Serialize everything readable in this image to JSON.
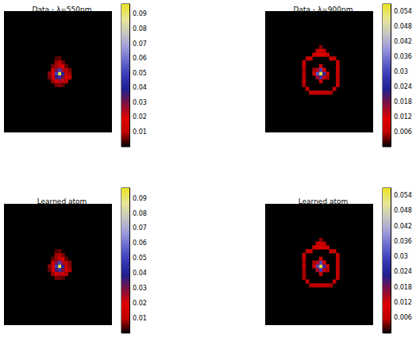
{
  "chart_data": [
    {
      "type": "heatmap",
      "title": "Data - λ=550nm",
      "xlim": [
        0,
        32
      ],
      "ylim": [
        0,
        32
      ],
      "tick_labels": false,
      "cells": [
        [
          16,
          16,
          0.095
        ],
        [
          16,
          15,
          0.05
        ],
        [
          16,
          17,
          0.045
        ],
        [
          15,
          16,
          0.05
        ],
        [
          17,
          16,
          0.04
        ],
        [
          15,
          15,
          0.03
        ],
        [
          15,
          17,
          0.035
        ],
        [
          17,
          15,
          0.025
        ],
        [
          17,
          17,
          0.03
        ],
        [
          14,
          16,
          0.02
        ],
        [
          14,
          15,
          0.015
        ],
        [
          14,
          17,
          0.018
        ],
        [
          16,
          18,
          0.025
        ],
        [
          15,
          18,
          0.02
        ],
        [
          17,
          18,
          0.022
        ],
        [
          18,
          17,
          0.015
        ],
        [
          18,
          16,
          0.012
        ],
        [
          18,
          15,
          0.01
        ],
        [
          16,
          14,
          0.012
        ],
        [
          17,
          14,
          0.018
        ],
        [
          15,
          14,
          0.008
        ],
        [
          16,
          13,
          0.012
        ],
        [
          15,
          13,
          0.008
        ],
        [
          17,
          13,
          0.006
        ],
        [
          16,
          12,
          0.005
        ],
        [
          15,
          12,
          0.004
        ],
        [
          19,
          16,
          0.008
        ],
        [
          19,
          17,
          0.01
        ],
        [
          19,
          15,
          0.006
        ],
        [
          13,
          16,
          0.007
        ],
        [
          13,
          17,
          0.006
        ],
        [
          14,
          18,
          0.008
        ],
        [
          15,
          19,
          0.006
        ],
        [
          16,
          19,
          0.007
        ],
        [
          17,
          19,
          0.005
        ],
        [
          18,
          18,
          0.01
        ],
        [
          14,
          14,
          0.006
        ],
        [
          18,
          14,
          0.005
        ]
      ],
      "colorbar_range": [
        0,
        0.097
      ],
      "colorbar_ticks": [
        0.01,
        0.02,
        0.03,
        0.04,
        0.05,
        0.06,
        0.07,
        0.08,
        0.09
      ]
    },
    {
      "type": "heatmap",
      "title": "Data - λ=900nm",
      "xlim": [
        0,
        32
      ],
      "ylim": [
        0,
        32
      ],
      "tick_labels": false,
      "cells": [
        [
          16,
          16,
          0.056
        ],
        [
          16,
          15,
          0.03
        ],
        [
          16,
          17,
          0.028
        ],
        [
          15,
          16,
          0.032
        ],
        [
          17,
          16,
          0.026
        ],
        [
          15,
          15,
          0.014
        ],
        [
          17,
          15,
          0.012
        ],
        [
          15,
          17,
          0.016
        ],
        [
          17,
          17,
          0.013
        ],
        [
          16,
          14,
          0.008
        ],
        [
          16,
          18,
          0.007
        ],
        [
          14,
          16,
          0.007
        ],
        [
          18,
          16,
          0.006
        ],
        [
          14,
          15,
          0.005
        ],
        [
          18,
          17,
          0.005
        ],
        [
          14,
          11,
          0.008
        ],
        [
          15,
          11,
          0.01
        ],
        [
          16,
          11,
          0.012
        ],
        [
          17,
          11,
          0.01
        ],
        [
          18,
          11,
          0.008
        ],
        [
          15,
          10,
          0.006
        ],
        [
          16,
          10,
          0.009
        ],
        [
          17,
          10,
          0.006
        ],
        [
          16,
          9,
          0.004
        ],
        [
          12,
          12,
          0.006
        ],
        [
          13,
          12,
          0.007
        ],
        [
          19,
          12,
          0.007
        ],
        [
          20,
          12,
          0.006
        ],
        [
          11,
          13,
          0.006
        ],
        [
          21,
          13,
          0.006
        ],
        [
          11,
          14,
          0.006
        ],
        [
          21,
          14,
          0.007
        ],
        [
          11,
          15,
          0.005
        ],
        [
          21,
          15,
          0.007
        ],
        [
          11,
          16,
          0.006
        ],
        [
          21,
          16,
          0.007
        ],
        [
          11,
          17,
          0.005
        ],
        [
          21,
          17,
          0.006
        ],
        [
          11,
          18,
          0.006
        ],
        [
          21,
          18,
          0.006
        ],
        [
          11,
          19,
          0.005
        ],
        [
          21,
          19,
          0.006
        ],
        [
          12,
          20,
          0.006
        ],
        [
          20,
          20,
          0.006
        ],
        [
          13,
          21,
          0.006
        ],
        [
          14,
          21,
          0.006
        ],
        [
          15,
          21,
          0.007
        ],
        [
          16,
          21,
          0.007
        ],
        [
          17,
          21,
          0.006
        ],
        [
          18,
          21,
          0.006
        ],
        [
          19,
          21,
          0.005
        ]
      ],
      "colorbar_range": [
        0,
        0.057
      ],
      "colorbar_ticks": [
        0.006,
        0.012,
        0.018,
        0.024,
        0.03,
        0.036,
        0.042,
        0.048,
        0.054
      ]
    },
    {
      "type": "heatmap",
      "title": "Learned atom",
      "xlim": [
        0,
        32
      ],
      "ylim": [
        0,
        32
      ],
      "tick_labels": false,
      "cells": [
        [
          16,
          16,
          0.095
        ],
        [
          16,
          15,
          0.05
        ],
        [
          16,
          17,
          0.046
        ],
        [
          15,
          16,
          0.049
        ],
        [
          17,
          16,
          0.04
        ],
        [
          15,
          15,
          0.03
        ],
        [
          15,
          17,
          0.034
        ],
        [
          17,
          15,
          0.025
        ],
        [
          17,
          17,
          0.03
        ],
        [
          14,
          16,
          0.02
        ],
        [
          14,
          15,
          0.014
        ],
        [
          14,
          17,
          0.017
        ],
        [
          16,
          18,
          0.024
        ],
        [
          15,
          18,
          0.02
        ],
        [
          17,
          18,
          0.021
        ],
        [
          18,
          17,
          0.014
        ],
        [
          18,
          16,
          0.012
        ],
        [
          18,
          15,
          0.01
        ],
        [
          16,
          14,
          0.012
        ],
        [
          17,
          14,
          0.017
        ],
        [
          15,
          14,
          0.008
        ],
        [
          16,
          13,
          0.011
        ],
        [
          15,
          13,
          0.008
        ],
        [
          17,
          13,
          0.006
        ],
        [
          16,
          12,
          0.005
        ],
        [
          15,
          12,
          0.004
        ],
        [
          19,
          16,
          0.007
        ],
        [
          19,
          17,
          0.009
        ],
        [
          19,
          15,
          0.006
        ],
        [
          13,
          16,
          0.007
        ],
        [
          13,
          17,
          0.005
        ],
        [
          14,
          18,
          0.008
        ],
        [
          15,
          19,
          0.006
        ],
        [
          16,
          19,
          0.006
        ],
        [
          17,
          19,
          0.005
        ],
        [
          18,
          18,
          0.009
        ],
        [
          14,
          14,
          0.005
        ],
        [
          18,
          14,
          0.005
        ]
      ],
      "colorbar_range": [
        0,
        0.097
      ],
      "colorbar_ticks": [
        0.01,
        0.02,
        0.03,
        0.04,
        0.05,
        0.06,
        0.07,
        0.08,
        0.09
      ]
    },
    {
      "type": "heatmap",
      "title": "Learned atom",
      "xlim": [
        0,
        32
      ],
      "ylim": [
        0,
        32
      ],
      "tick_labels": false,
      "cells": [
        [
          16,
          16,
          0.056
        ],
        [
          16,
          15,
          0.03
        ],
        [
          16,
          17,
          0.029
        ],
        [
          15,
          16,
          0.031
        ],
        [
          17,
          16,
          0.026
        ],
        [
          15,
          15,
          0.014
        ],
        [
          17,
          15,
          0.012
        ],
        [
          15,
          17,
          0.015
        ],
        [
          17,
          17,
          0.013
        ],
        [
          16,
          14,
          0.008
        ],
        [
          16,
          18,
          0.007
        ],
        [
          14,
          16,
          0.007
        ],
        [
          18,
          16,
          0.006
        ],
        [
          14,
          15,
          0.005
        ],
        [
          18,
          17,
          0.005
        ],
        [
          14,
          11,
          0.008
        ],
        [
          15,
          11,
          0.01
        ],
        [
          16,
          11,
          0.011
        ],
        [
          17,
          11,
          0.01
        ],
        [
          18,
          11,
          0.008
        ],
        [
          15,
          10,
          0.006
        ],
        [
          16,
          10,
          0.008
        ],
        [
          17,
          10,
          0.006
        ],
        [
          16,
          9,
          0.004
        ],
        [
          12,
          12,
          0.006
        ],
        [
          13,
          12,
          0.007
        ],
        [
          19,
          12,
          0.007
        ],
        [
          20,
          12,
          0.006
        ],
        [
          11,
          13,
          0.006
        ],
        [
          21,
          13,
          0.006
        ],
        [
          11,
          14,
          0.006
        ],
        [
          21,
          14,
          0.006
        ],
        [
          11,
          15,
          0.005
        ],
        [
          21,
          15,
          0.007
        ],
        [
          11,
          16,
          0.006
        ],
        [
          21,
          16,
          0.007
        ],
        [
          11,
          17,
          0.005
        ],
        [
          21,
          17,
          0.006
        ],
        [
          11,
          18,
          0.005
        ],
        [
          21,
          18,
          0.006
        ],
        [
          11,
          19,
          0.005
        ],
        [
          21,
          19,
          0.006
        ],
        [
          12,
          20,
          0.006
        ],
        [
          20,
          20,
          0.006
        ],
        [
          13,
          21,
          0.005
        ],
        [
          14,
          21,
          0.006
        ],
        [
          15,
          21,
          0.006
        ],
        [
          16,
          21,
          0.007
        ],
        [
          17,
          21,
          0.006
        ],
        [
          18,
          21,
          0.006
        ],
        [
          19,
          21,
          0.005
        ]
      ],
      "colorbar_range": [
        0,
        0.057
      ],
      "colorbar_ticks": [
        0.006,
        0.012,
        0.018,
        0.024,
        0.03,
        0.036,
        0.042,
        0.048,
        0.054
      ]
    }
  ]
}
